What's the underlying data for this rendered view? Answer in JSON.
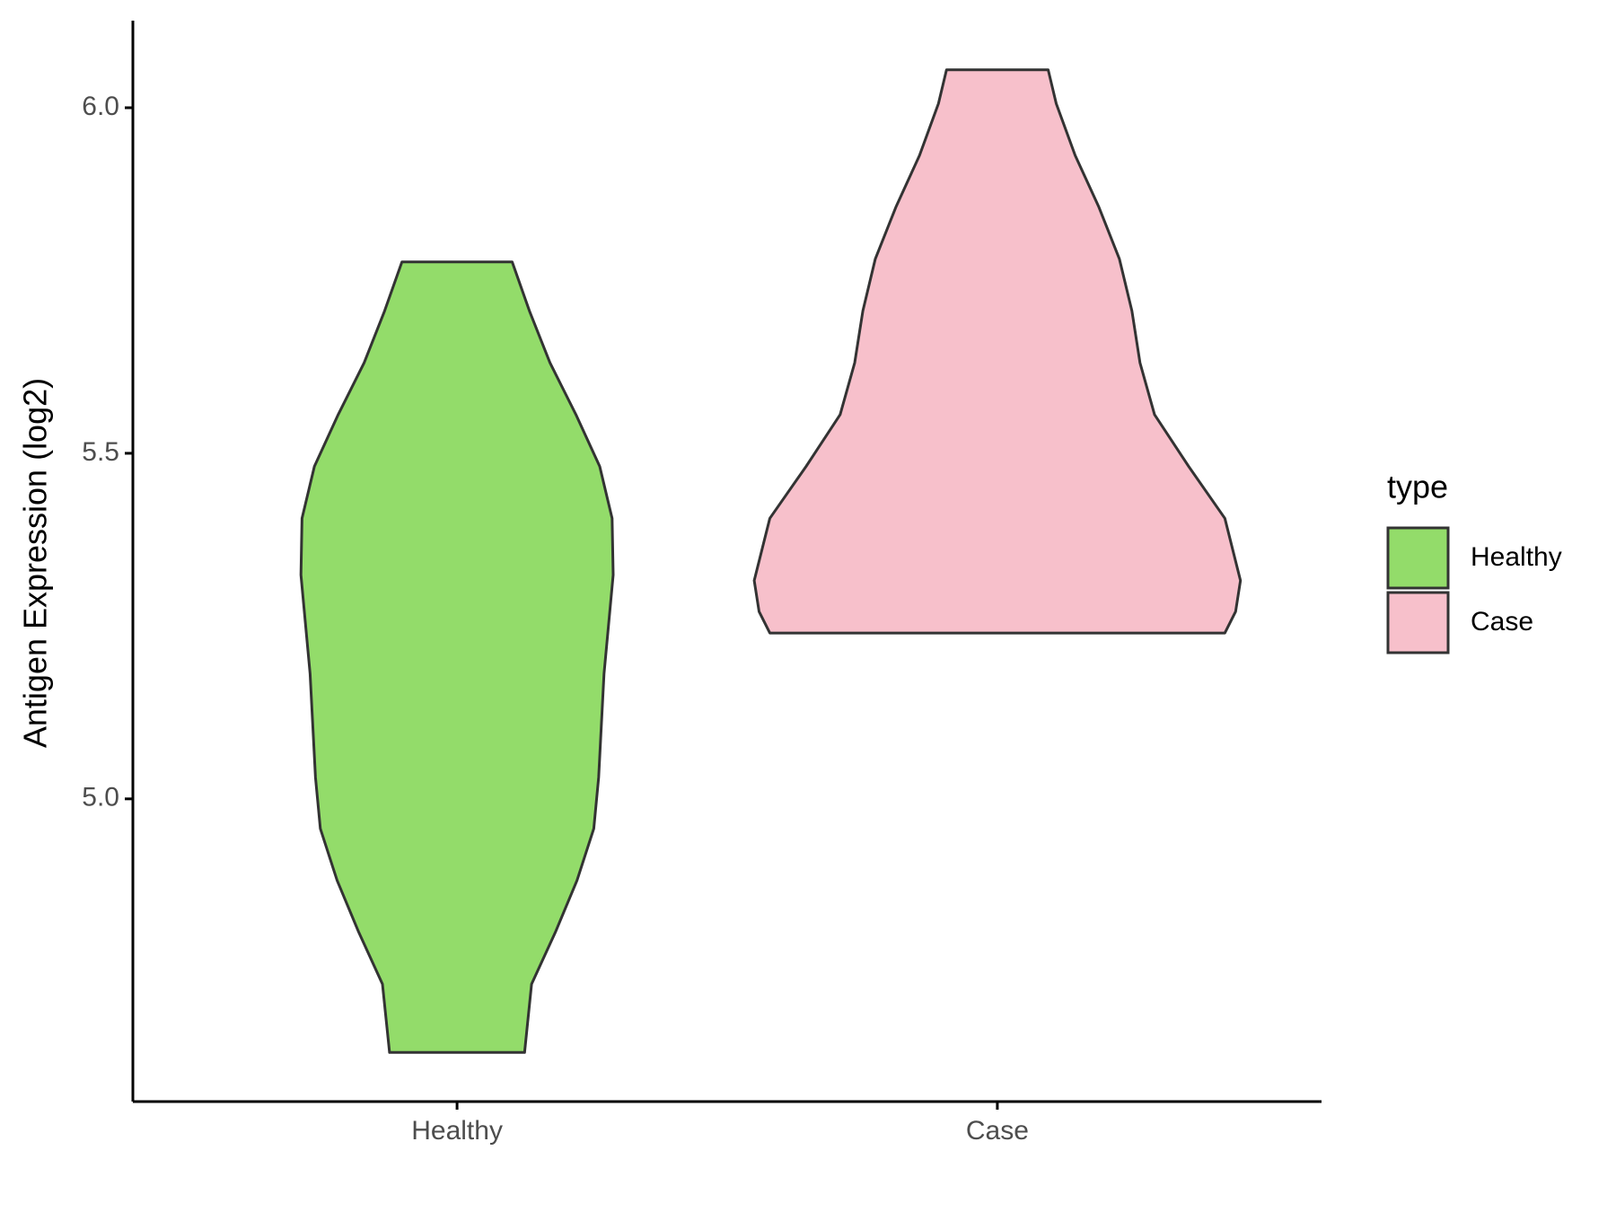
{
  "chart_data": {
    "type": "violin",
    "y_label": "Antigen Expression (log2)",
    "categories": [
      "Healthy",
      "Case"
    ],
    "series": [
      {
        "name": "Healthy",
        "color": "#93dc6a",
        "y": [
          5.777,
          5.706,
          5.631,
          5.556,
          5.481,
          5.406,
          5.324,
          5.181,
          5.031,
          4.957,
          4.882,
          4.807,
          4.732,
          4.633
        ],
        "widths": [
          0.102,
          0.134,
          0.172,
          0.22,
          0.264,
          0.287,
          0.289,
          0.272,
          0.262,
          0.253,
          0.222,
          0.182,
          0.138,
          0.125
        ]
      },
      {
        "name": "Case",
        "color": "#f7c0cb",
        "y": [
          6.055,
          6.006,
          5.931,
          5.856,
          5.781,
          5.706,
          5.631,
          5.556,
          5.481,
          5.406,
          5.316,
          5.271,
          5.24
        ],
        "widths": [
          0.094,
          0.109,
          0.144,
          0.188,
          0.226,
          0.249,
          0.264,
          0.291,
          0.354,
          0.421,
          0.45,
          0.441,
          0.421
        ]
      }
    ],
    "ylim": [
      4.562,
      6.126
    ],
    "yticks": [
      {
        "value": 5,
        "label": "5.0"
      },
      {
        "value": 5.5,
        "label": "5.5"
      },
      {
        "value": 6,
        "label": "6.0"
      }
    ],
    "legend_title": "type",
    "legend": "right"
  }
}
